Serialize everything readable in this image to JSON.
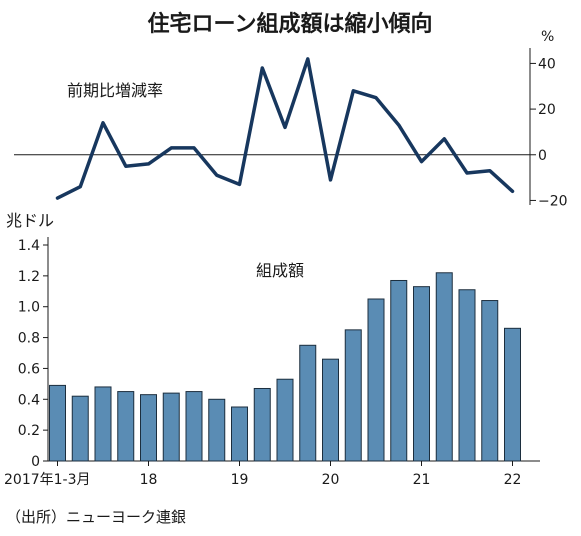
{
  "title": "住宅ローン組成額は縮小傾向",
  "source": "（出所）ニューヨーク連銀",
  "chart_data": [
    {
      "type": "line",
      "title": "前期比増減率",
      "unit": "%",
      "ylim": [
        -22,
        45
      ],
      "yticks": [
        40,
        20,
        0,
        -20
      ],
      "values": [
        -19,
        -14,
        14,
        -5,
        -4,
        3,
        3,
        -9,
        -13,
        38,
        12,
        42,
        -11,
        28,
        25,
        13,
        -3,
        7,
        -8,
        -7,
        -16
      ]
    },
    {
      "type": "bar",
      "title": "組成額",
      "unit": "兆ドル",
      "ylim": [
        0,
        1.4
      ],
      "yticks": [
        0,
        0.2,
        0.4,
        0.6,
        0.8,
        1.0,
        1.2,
        1.4
      ],
      "ytick_labels": [
        "0",
        "0.2",
        "0.4",
        "0.6",
        "0.8",
        "1.0",
        "1.2",
        "1.4"
      ],
      "values": [
        0.49,
        0.42,
        0.48,
        0.45,
        0.43,
        0.44,
        0.45,
        0.4,
        0.35,
        0.47,
        0.53,
        0.75,
        0.66,
        0.85,
        1.05,
        1.17,
        1.13,
        1.22,
        1.11,
        1.04,
        0.86
      ],
      "x_tick_labels": [
        {
          "index": 0,
          "label": "2017年1-3月"
        },
        {
          "index": 4,
          "label": "18"
        },
        {
          "index": 8,
          "label": "19"
        },
        {
          "index": 12,
          "label": "20"
        },
        {
          "index": 16,
          "label": "21"
        },
        {
          "index": 20,
          "label": "22"
        }
      ]
    }
  ]
}
